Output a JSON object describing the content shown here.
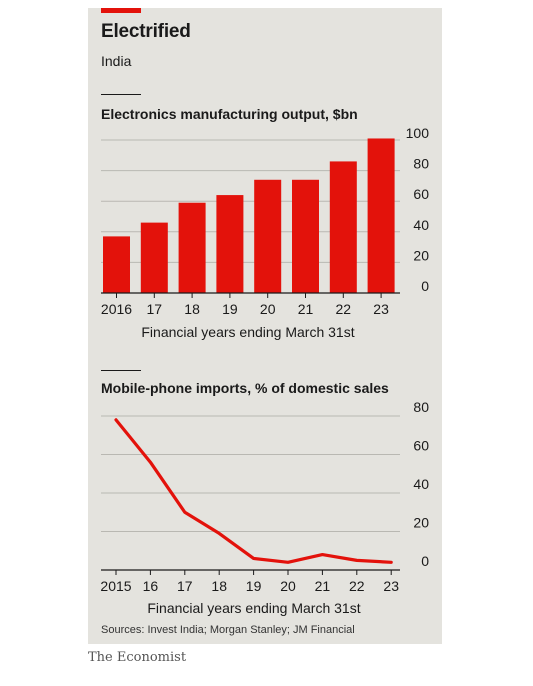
{
  "header": {
    "title": "Electrified",
    "subtitle": "India"
  },
  "accent_color": "#e3120b",
  "chart_data": [
    {
      "type": "bar",
      "title": "Electronics manufacturing output, $bn",
      "categories": [
        "2016",
        "17",
        "18",
        "19",
        "20",
        "21",
        "22",
        "23"
      ],
      "values": [
        37,
        46,
        59,
        64,
        74,
        74,
        86,
        101
      ],
      "xlabel": "Financial years ending March 31st",
      "ylabel": "",
      "ylim": [
        0,
        100
      ],
      "yticks": [
        0,
        20,
        40,
        60,
        80,
        100
      ],
      "grid": true,
      "y_axis_side": "right",
      "color": "#e3120b"
    },
    {
      "type": "line",
      "title": "Mobile-phone imports, % of domestic sales",
      "x": [
        "2015",
        "16",
        "17",
        "18",
        "19",
        "20",
        "21",
        "22",
        "23"
      ],
      "values": [
        78,
        56,
        30,
        19,
        6,
        4,
        8,
        5,
        4
      ],
      "xlabel": "Financial years ending March 31st",
      "ylabel": "",
      "ylim": [
        0,
        80
      ],
      "yticks": [
        0,
        20,
        40,
        60,
        80
      ],
      "grid": true,
      "y_axis_side": "right",
      "color": "#e3120b"
    }
  ],
  "footer": {
    "sources": "Sources: Invest India; Morgan Stanley; JM Financial",
    "brand": "The Economist"
  }
}
